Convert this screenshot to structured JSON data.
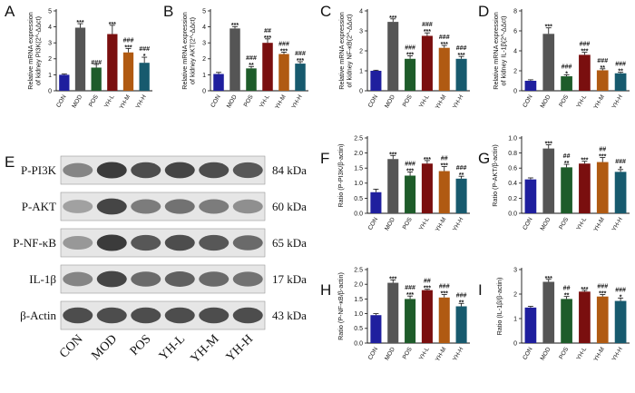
{
  "colors": [
    "#1f1f9e",
    "#555555",
    "#1e5c2a",
    "#7a0f0f",
    "#b05a12",
    "#175a6e"
  ],
  "categories": [
    "CON",
    "MOD",
    "POS",
    "YH-L",
    "YH-M",
    "YH-H"
  ],
  "chart_data": [
    {
      "id": "A",
      "type": "bar",
      "panel": "A",
      "ylabel": "Relative mRNA expression of kidney PI3K(2^-ΔΔct)",
      "ylim": [
        0,
        5
      ],
      "yticks": [
        0,
        1,
        2,
        3,
        4,
        5
      ],
      "categories": [
        "CON",
        "MOD",
        "POS",
        "YH-L",
        "YH-M",
        "YH-H"
      ],
      "values": [
        1.0,
        3.95,
        1.45,
        3.55,
        2.4,
        1.75
      ],
      "errors": [
        0.05,
        0.25,
        0.2,
        0.55,
        0.25,
        0.35
      ],
      "annotations": [
        [
          "",
          ""
        ],
        [
          "",
          "***"
        ],
        [
          "###",
          ""
        ],
        [
          "",
          "***"
        ],
        [
          "###",
          "***"
        ],
        [
          "###",
          "*"
        ]
      ]
    },
    {
      "id": "B",
      "type": "bar",
      "panel": "B",
      "ylabel": "Relative mRNA expression of kidney AKT(2^-ΔΔct)",
      "ylim": [
        0,
        5
      ],
      "yticks": [
        0,
        1,
        2,
        3,
        4,
        5
      ],
      "categories": [
        "CON",
        "MOD",
        "POS",
        "YH-L",
        "YH-M",
        "YH-H"
      ],
      "values": [
        1.05,
        3.9,
        1.4,
        3.0,
        2.3,
        1.7
      ],
      "errors": [
        0.1,
        0.12,
        0.12,
        0.25,
        0.12,
        0.12
      ],
      "annotations": [
        [
          "",
          ""
        ],
        [
          "",
          "***"
        ],
        [
          "###",
          "**"
        ],
        [
          "##",
          "***"
        ],
        [
          "###",
          "***"
        ],
        [
          "###",
          "***"
        ]
      ]
    },
    {
      "id": "C",
      "type": "bar",
      "panel": "C",
      "ylabel": "Relative mRNA expression of kidney NF-κB(2^-ΔΔct)",
      "ylim": [
        0,
        4
      ],
      "yticks": [
        0,
        1,
        2,
        3,
        4
      ],
      "categories": [
        "CON",
        "MOD",
        "POS",
        "YH-L",
        "YH-M",
        "YH-H"
      ],
      "values": [
        1.0,
        3.45,
        1.6,
        2.75,
        2.15,
        1.6
      ],
      "errors": [
        0.03,
        0.15,
        0.15,
        0.15,
        0.12,
        0.12
      ],
      "annotations": [
        [
          "",
          ""
        ],
        [
          "",
          "***"
        ],
        [
          "###",
          "***"
        ],
        [
          "###",
          "***"
        ],
        [
          "###",
          "***"
        ],
        [
          "###",
          "***"
        ]
      ]
    },
    {
      "id": "D",
      "type": "bar",
      "panel": "D",
      "ylabel": "Relative mRNA expression of kidney IL-1β(2^-ΔΔct)",
      "ylim": [
        0,
        8
      ],
      "yticks": [
        0,
        2,
        4,
        6,
        8
      ],
      "categories": [
        "CON",
        "MOD",
        "POS",
        "YH-L",
        "YH-M",
        "YH-H"
      ],
      "values": [
        1.0,
        5.7,
        1.45,
        3.6,
        2.05,
        1.75
      ],
      "errors": [
        0.1,
        0.6,
        0.15,
        0.25,
        0.15,
        0.1
      ],
      "annotations": [
        [
          "",
          ""
        ],
        [
          "",
          "***"
        ],
        [
          "###",
          "*"
        ],
        [
          "###",
          "***"
        ],
        [
          "###",
          "**"
        ],
        [
          "###",
          "**"
        ]
      ]
    },
    {
      "id": "F",
      "type": "bar",
      "panel": "F",
      "ylabel": "Ratio (P-PI3K/β-actin)",
      "ylim": [
        0,
        2.5
      ],
      "yticks": [
        0.0,
        0.5,
        1.0,
        1.5,
        2.0,
        2.5
      ],
      "tickdec": 1,
      "categories": [
        "CON",
        "MOD",
        "POS",
        "YH-L",
        "YH-M",
        "YH-H"
      ],
      "values": [
        0.7,
        1.8,
        1.25,
        1.65,
        1.4,
        1.15
      ],
      "errors": [
        0.1,
        0.12,
        0.12,
        0.1,
        0.15,
        0.08
      ],
      "annotations": [
        [
          "",
          ""
        ],
        [
          "",
          "***"
        ],
        [
          "###",
          "***"
        ],
        [
          "",
          "***"
        ],
        [
          "##",
          "***"
        ],
        [
          "###",
          "**"
        ]
      ]
    },
    {
      "id": "G",
      "type": "bar",
      "panel": "G",
      "ylabel": "Ratio (P-AKT/β-actin)",
      "ylim": [
        0,
        1.0
      ],
      "yticks": [
        0.0,
        0.2,
        0.4,
        0.6,
        0.8,
        1.0
      ],
      "tickdec": 1,
      "categories": [
        "CON",
        "MOD",
        "POS",
        "YH-L",
        "YH-M",
        "YH-H"
      ],
      "values": [
        0.45,
        0.86,
        0.61,
        0.66,
        0.68,
        0.55
      ],
      "errors": [
        0.02,
        0.05,
        0.04,
        0.03,
        0.06,
        0.03
      ],
      "annotations": [
        [
          "",
          ""
        ],
        [
          "",
          "***"
        ],
        [
          "##",
          "**"
        ],
        [
          "",
          "***"
        ],
        [
          "##",
          "***"
        ],
        [
          "###",
          "*"
        ]
      ]
    },
    {
      "id": "H",
      "type": "bar",
      "panel": "H",
      "ylabel": "Ratio (P-NF-κB/β-actin)",
      "ylim": [
        0,
        2.5
      ],
      "yticks": [
        0.0,
        0.5,
        1.0,
        1.5,
        2.0,
        2.5
      ],
      "tickdec": 1,
      "categories": [
        "CON",
        "MOD",
        "POS",
        "YH-L",
        "YH-M",
        "YH-H"
      ],
      "values": [
        0.95,
        2.05,
        1.5,
        1.8,
        1.55,
        1.25
      ],
      "errors": [
        0.05,
        0.1,
        0.1,
        0.03,
        0.1,
        0.1
      ],
      "annotations": [
        [
          "",
          ""
        ],
        [
          "",
          "***"
        ],
        [
          "###",
          "***"
        ],
        [
          "##",
          "***"
        ],
        [
          "###",
          "***"
        ],
        [
          "###",
          "**"
        ]
      ]
    },
    {
      "id": "I",
      "type": "bar",
      "panel": "I",
      "ylabel": "Ratio (IL-1β/β-actin)",
      "ylim": [
        0,
        3
      ],
      "yticks": [
        0,
        1,
        2,
        3
      ],
      "categories": [
        "CON",
        "MOD",
        "POS",
        "YH-L",
        "YH-M",
        "YH-H"
      ],
      "values": [
        1.45,
        2.5,
        1.8,
        2.1,
        1.9,
        1.72
      ],
      "errors": [
        0.05,
        0.1,
        0.1,
        0.05,
        0.08,
        0.12
      ],
      "annotations": [
        [
          "",
          ""
        ],
        [
          "",
          "***"
        ],
        [
          "##",
          "**"
        ],
        [
          "",
          "***"
        ],
        [
          "###",
          "***"
        ],
        [
          "###",
          "*"
        ]
      ]
    }
  ],
  "western_blot": {
    "panel": "E",
    "bands": [
      {
        "label": "P-PI3K",
        "size": "84 kDa",
        "intensity": [
          0.55,
          0.95,
          0.85,
          0.9,
          0.85,
          0.8
        ]
      },
      {
        "label": "P-AKT",
        "size": "60 kDa",
        "intensity": [
          0.4,
          0.9,
          0.6,
          0.65,
          0.6,
          0.5
        ]
      },
      {
        "label": "P-NF-κB",
        "size": "65 kDa",
        "intensity": [
          0.45,
          0.95,
          0.8,
          0.85,
          0.8,
          0.7
        ]
      },
      {
        "label": "IL-1β",
        "size": "17 kDa",
        "intensity": [
          0.55,
          0.9,
          0.7,
          0.75,
          0.7,
          0.65
        ]
      },
      {
        "label": "β-Actin",
        "size": "43 kDa",
        "intensity": [
          0.85,
          0.85,
          0.85,
          0.85,
          0.85,
          0.85
        ]
      }
    ],
    "lanes": [
      "CON",
      "MOD",
      "POS",
      "YH-L",
      "YH-M",
      "YH-H"
    ]
  }
}
